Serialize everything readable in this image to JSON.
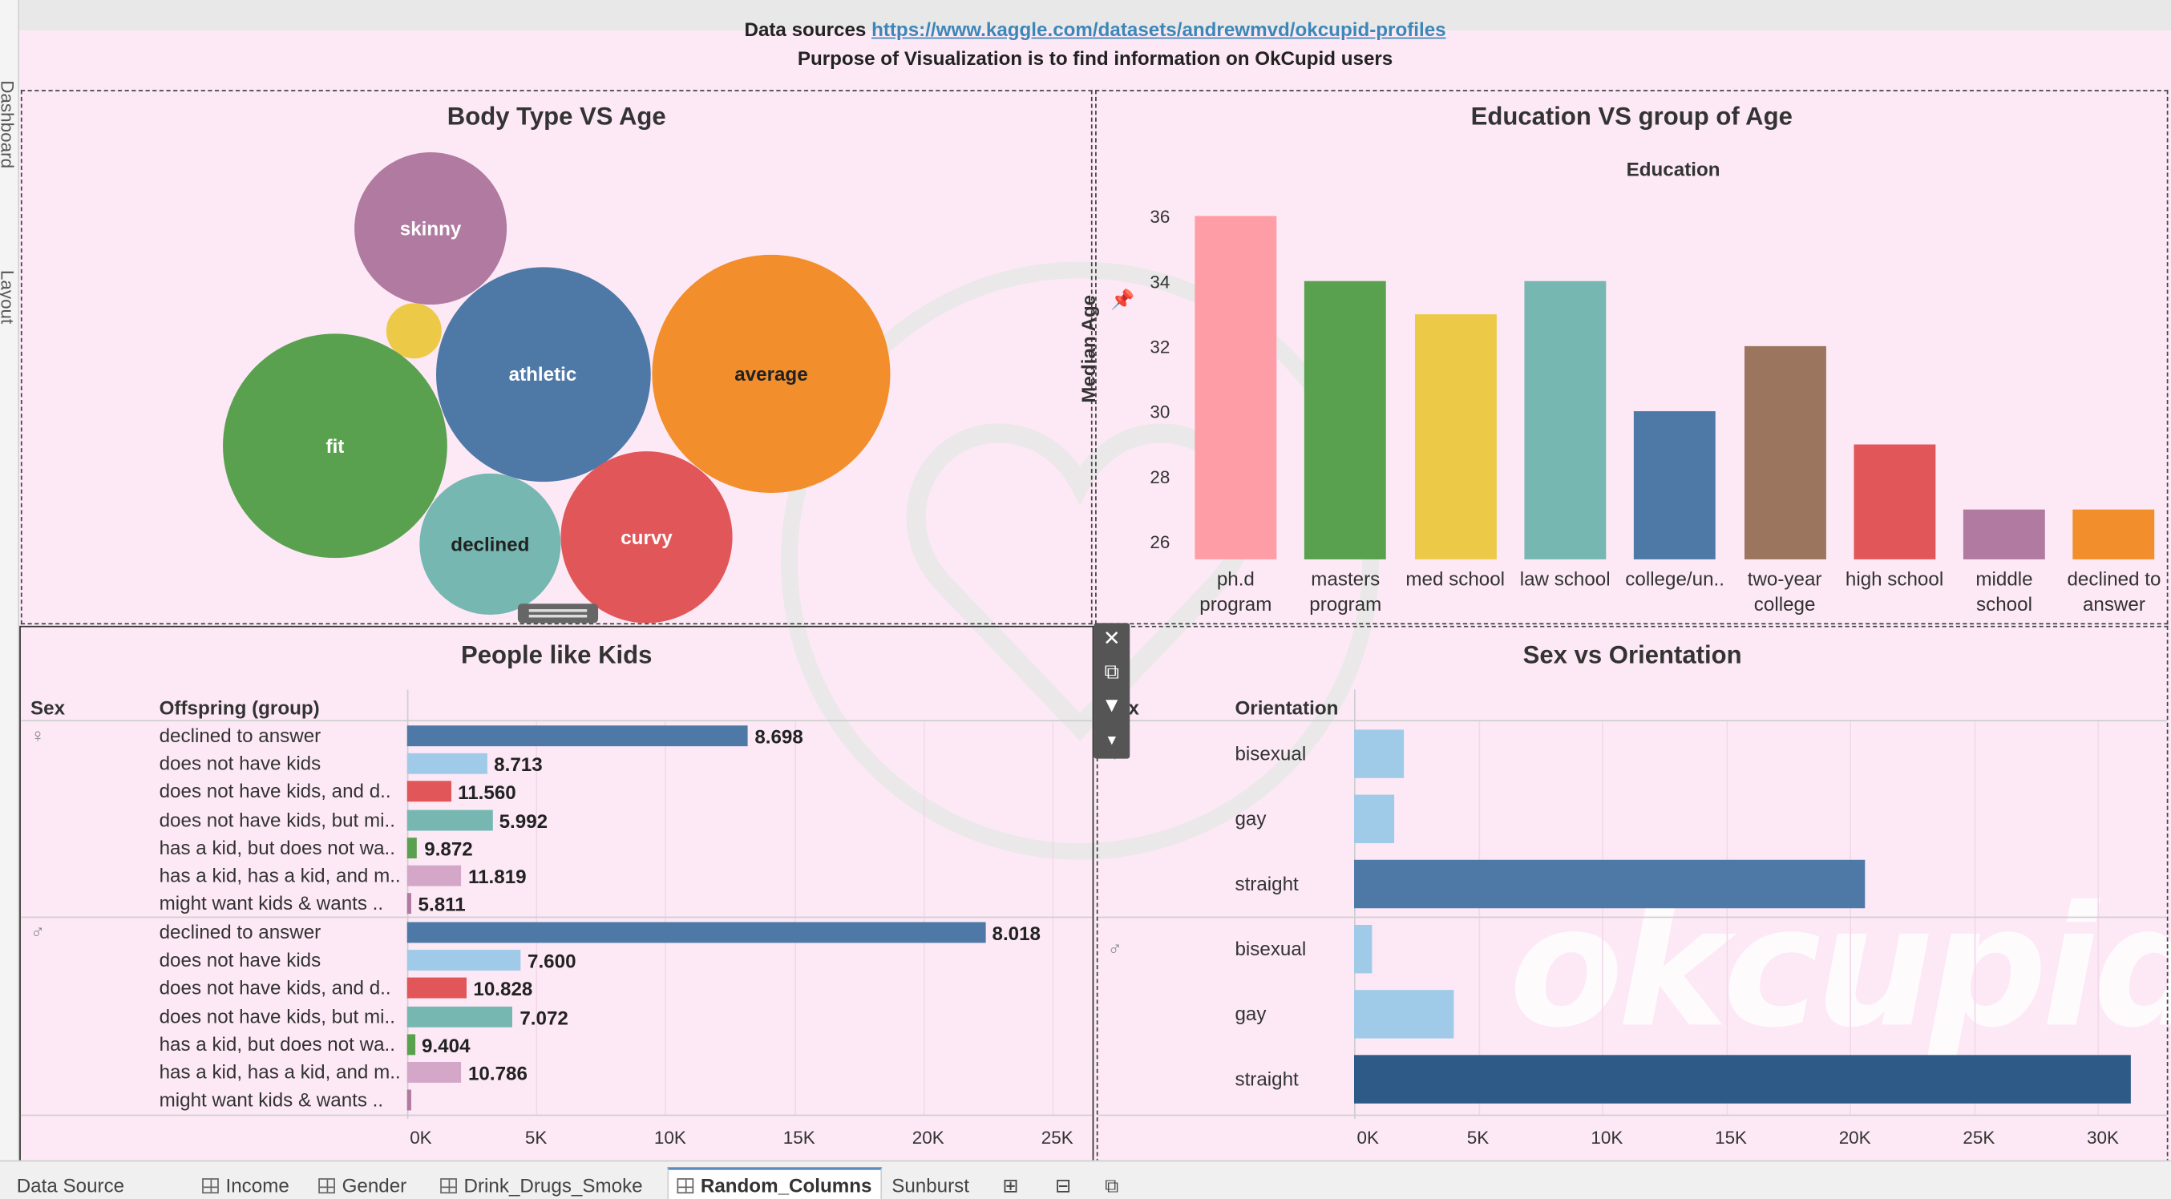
{
  "left_rail": {
    "tab1": "Dashboard",
    "tab2": "Layout"
  },
  "header": {
    "sources_label": "Data sources",
    "sources_url": "https://www.kaggle.com/datasets/andrewmvd/okcupid-profiles",
    "purpose": "Purpose of Visualization  is to find information on OkCupid users"
  },
  "watermark": {
    "brand": "okcupid"
  },
  "colors": {
    "canvas_bg": "#fde9f6",
    "blue": "#4e79a7",
    "light_blue": "#a0cbe8",
    "red": "#e15759",
    "teal": "#76b7b2",
    "green": "#59a14f",
    "yellow": "#edc948",
    "pink": "#ff9da7",
    "brown": "#9c755f",
    "purple": "#b07aa1",
    "orange": "#f28e2b",
    "lilac": "#d4a6c8",
    "dark_blue": "#2d5a87"
  },
  "chart_data": [
    {
      "type": "bubble",
      "title": "Body Type VS Age",
      "categories": [
        "skinny",
        "",
        "athletic",
        "average",
        "fit",
        "declined",
        "curvy"
      ],
      "colors": [
        "#b07aa1",
        "#edc948",
        "#4e79a7",
        "#f28e2b",
        "#59a14f",
        "#76b7b2",
        "#e15759"
      ],
      "relative_size": [
        110,
        40,
        155,
        172,
        162,
        102,
        124
      ]
    },
    {
      "type": "bar",
      "title": "Education VS group of Age",
      "subtitle": "Education",
      "ylabel": "Median Age",
      "ylim": [
        25.5,
        36
      ],
      "yticks": [
        "36",
        "34",
        "32",
        "30",
        "28",
        "26"
      ],
      "categories": [
        "ph.d\nprogram",
        "masters\nprogram",
        "med school",
        "law school",
        "college/un..",
        "two-year\ncollege",
        "high school",
        "middle\nschool",
        "declined to\nanswer"
      ],
      "values": [
        36,
        34,
        33,
        34,
        30,
        32,
        29,
        27,
        27
      ],
      "colors": [
        "#ff9da7",
        "#59a14f",
        "#edc948",
        "#76b7b2",
        "#4e79a7",
        "#9c755f",
        "#e15759",
        "#b07aa1",
        "#f28e2b"
      ]
    },
    {
      "type": "bar",
      "title": "People like Kids",
      "col_sex": "Sex",
      "col_group": "Offspring (group)",
      "xlim": [
        0,
        26500
      ],
      "xticks": [
        "0K",
        "5K",
        "10K",
        "15K",
        "20K",
        "25K"
      ],
      "groups": [
        {
          "sex_symbol": "♀",
          "rows": [
            {
              "label": "declined to answer",
              "count": 13200,
              "value_label": "8.698",
              "color": "#4e79a7"
            },
            {
              "label": "does not have kids",
              "count": 3100,
              "value_label": "8.713",
              "color": "#a0cbe8"
            },
            {
              "label": "does not have kids, and d..",
              "count": 1700,
              "value_label": "11.560",
              "color": "#e15759"
            },
            {
              "label": "does not have kids, but mi..",
              "count": 3300,
              "value_label": "5.992",
              "color": "#76b7b2"
            },
            {
              "label": "has a kid, but does not wa..",
              "count": 400,
              "value_label": "9.872",
              "color": "#59a14f"
            },
            {
              "label": "has a kid, has a kid, and m..",
              "count": 2100,
              "value_label": "11.819",
              "color": "#d4a6c8"
            },
            {
              "label": "might want kids & wants ..",
              "count": 150,
              "value_label": "5.811",
              "color": "#b07aa1"
            }
          ]
        },
        {
          "sex_symbol": "♂",
          "rows": [
            {
              "label": "declined to answer",
              "count": 22400,
              "value_label": "8.018",
              "color": "#4e79a7"
            },
            {
              "label": "does not have kids",
              "count": 4400,
              "value_label": "7.600",
              "color": "#a0cbe8"
            },
            {
              "label": "does not have kids, and d..",
              "count": 2300,
              "value_label": "10.828",
              "color": "#e15759"
            },
            {
              "label": "does not have kids, but mi..",
              "count": 4100,
              "value_label": "7.072",
              "color": "#76b7b2"
            },
            {
              "label": "has a kid, but does not wa..",
              "count": 300,
              "value_label": "9.404",
              "color": "#59a14f"
            },
            {
              "label": "has a kid, has a kid, and m..",
              "count": 2100,
              "value_label": "10.786",
              "color": "#d4a6c8"
            },
            {
              "label": "might want kids & wants ..",
              "count": 150,
              "value_label": "",
              "color": "#b07aa1"
            }
          ]
        }
      ]
    },
    {
      "type": "bar",
      "title": "Sex vs Orientation",
      "col_sex": "x",
      "col_orientation": "Orientation",
      "xlim": [
        0,
        32500
      ],
      "xticks": [
        "0K",
        "5K",
        "10K",
        "15K",
        "20K",
        "25K",
        "30K"
      ],
      "groups": [
        {
          "sex_symbol": "♀",
          "rows": [
            {
              "label": "bisexual",
              "count": 2000,
              "color": "#a0cbe8"
            },
            {
              "label": "gay",
              "count": 1600,
              "color": "#a0cbe8"
            },
            {
              "label": "straight",
              "count": 20600,
              "color": "#4e79a7"
            }
          ]
        },
        {
          "sex_symbol": "♂",
          "rows": [
            {
              "label": "bisexual",
              "count": 700,
              "color": "#a0cbe8"
            },
            {
              "label": "gay",
              "count": 4000,
              "color": "#a0cbe8"
            },
            {
              "label": "straight",
              "count": 31300,
              "color": "#2d5a87"
            }
          ]
        }
      ]
    }
  ],
  "toolbar": {
    "close": "✕",
    "popout": "⧉",
    "filter": "▼",
    "more": "▾"
  },
  "tabs": [
    {
      "label": "Data Source",
      "icon": "none",
      "active": false
    },
    {
      "label": "Income",
      "icon": "grid",
      "active": false
    },
    {
      "label": "Gender",
      "icon": "grid",
      "active": false
    },
    {
      "label": "Drink_Drugs_Smoke",
      "icon": "grid",
      "active": false
    },
    {
      "label": "Random_Columns",
      "icon": "grid",
      "active": true
    },
    {
      "label": "Sunburst",
      "icon": "none",
      "active": false
    }
  ]
}
